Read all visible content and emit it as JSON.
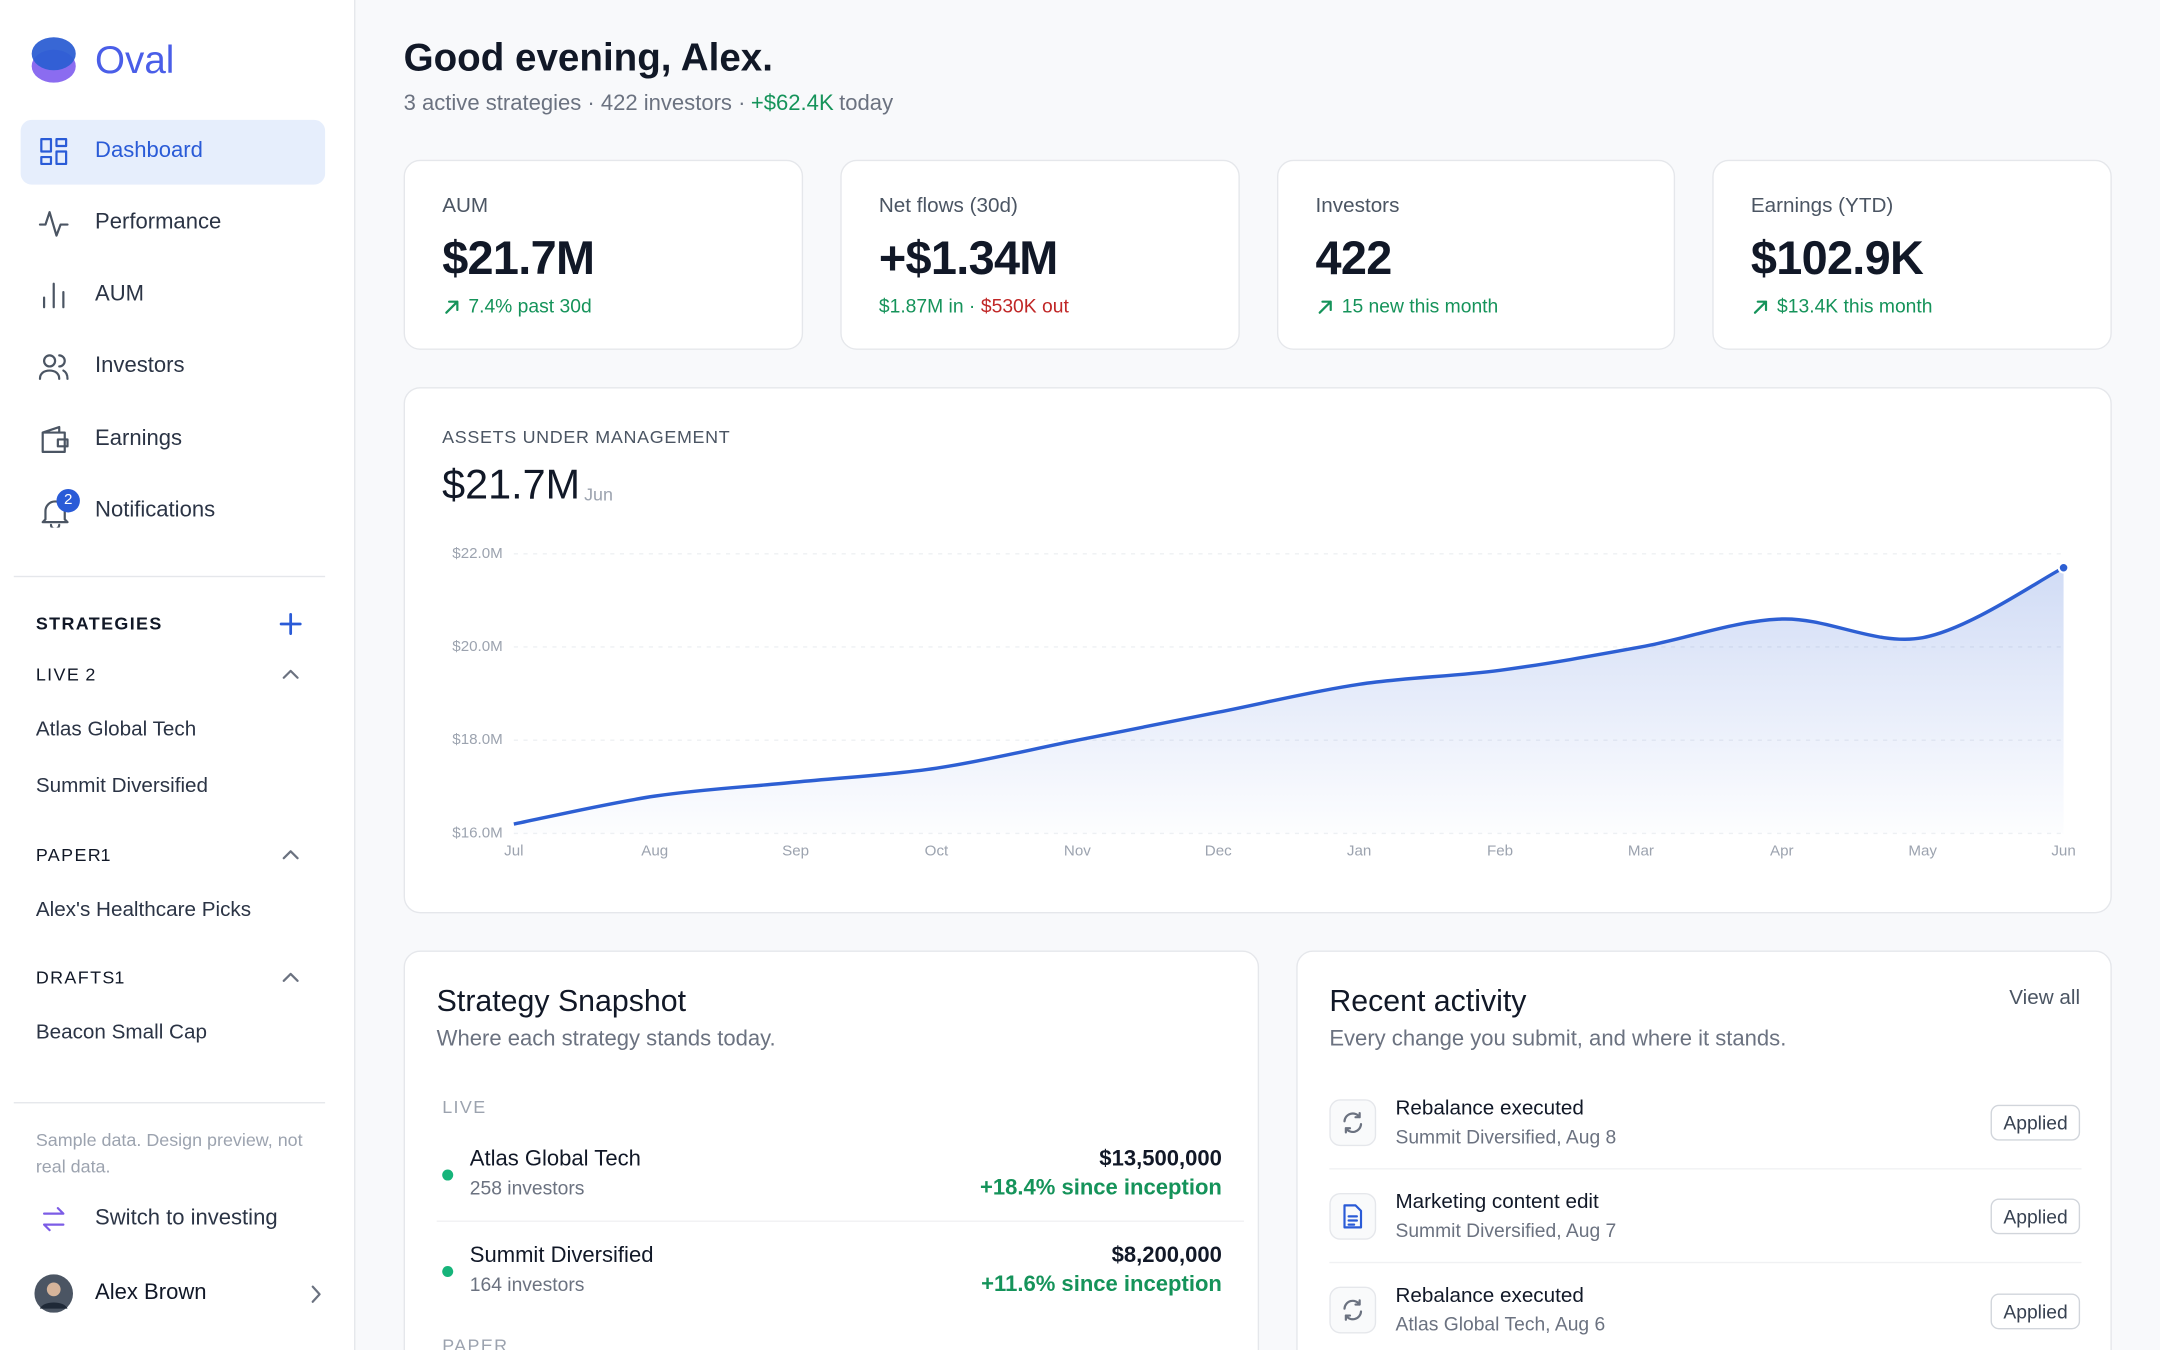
{
  "sidebar": {
    "brand": "Oval",
    "nav": [
      "Dashboard",
      "Performance",
      "AUM",
      "Investors",
      "Earnings",
      "Notifications"
    ],
    "notification_badge": 2,
    "strategies_title": "STRATEGIES",
    "groups": [
      {
        "label": "LIVE",
        "count": 2,
        "items": [
          "Atlas Global Tech",
          "Summit Diversified"
        ]
      },
      {
        "label": "PAPER",
        "count": 1,
        "items": [
          "Alex's Healthcare Picks"
        ]
      },
      {
        "label": "DRAFTS",
        "count": 1,
        "items": [
          "Beacon Small Cap"
        ]
      }
    ],
    "footnote": "Sample data. Design preview, not real data.",
    "switch": "Switch to investing",
    "user": "Alex Brown"
  },
  "header": {
    "greeting": "Good evening, Alex.",
    "summary": "3 active strategies · 422 investors ·",
    "today_change": "+$62.4K",
    "today": "today"
  },
  "kpis": [
    {
      "label": "AUM",
      "value": "$21.7M",
      "delta": "7.4% past 30d"
    },
    {
      "label": "Net flows (30d)",
      "value": "+$1.34M",
      "inflow": "$1.87M in ·",
      "outflow": "$530K out"
    },
    {
      "label": "Investors",
      "value": "422",
      "delta": "15 new this month"
    },
    {
      "label": "Earnings (YTD)",
      "value": "$102.9K",
      "delta": "$13.4K this month"
    }
  ],
  "aum_chart": {
    "type": "line",
    "eyebrow": "ASSETS UNDER MANAGEMENT",
    "headline": "$21.7M",
    "headline_period": "Jun",
    "categories": [
      "Jul",
      "Aug",
      "Sep",
      "Oct",
      "Nov",
      "Dec",
      "Jan",
      "Feb",
      "Mar",
      "Apr",
      "May",
      "Jun"
    ],
    "values": [
      16.2,
      16.8,
      17.1,
      17.4,
      18.0,
      18.6,
      19.2,
      19.5,
      20.0,
      20.6,
      20.2,
      21.7
    ],
    "color": "#2d5fd3",
    "ylim": [
      16,
      22
    ],
    "yticks": [
      {
        "value": 16,
        "label": "$16.0M"
      },
      {
        "value": 18,
        "label": "$18.0M"
      },
      {
        "value": 20,
        "label": "$20.0M"
      },
      {
        "value": 22,
        "label": "$22.0M"
      }
    ],
    "grid": true
  },
  "snapshot": {
    "title": "Strategy Snapshot",
    "subtitle": "Where each strategy stands today.",
    "groups": [
      {
        "label": "LIVE",
        "rows": [
          {
            "name": "Atlas Global Tech",
            "investors": "258 investors",
            "amount": "$13,500,000",
            "return": "+18.4% since inception"
          },
          {
            "name": "Summit Diversified",
            "investors": "164 investors",
            "amount": "$8,200,000",
            "return": "+11.6% since inception"
          }
        ]
      },
      {
        "label": "PAPER",
        "rows": []
      }
    ]
  },
  "activity": {
    "title": "Recent activity",
    "subtitle": "Every change you submit, and where it stands.",
    "view_all": "View all",
    "items": [
      {
        "title": "Rebalance executed",
        "meta": "Summit Diversified, Aug 8",
        "status": "Applied"
      },
      {
        "title": "Marketing content edit",
        "meta": "Summit Diversified, Aug 7",
        "status": "Applied"
      },
      {
        "title": "Rebalance executed",
        "meta": "Atlas Global Tech, Aug 6",
        "status": "Applied"
      }
    ]
  }
}
